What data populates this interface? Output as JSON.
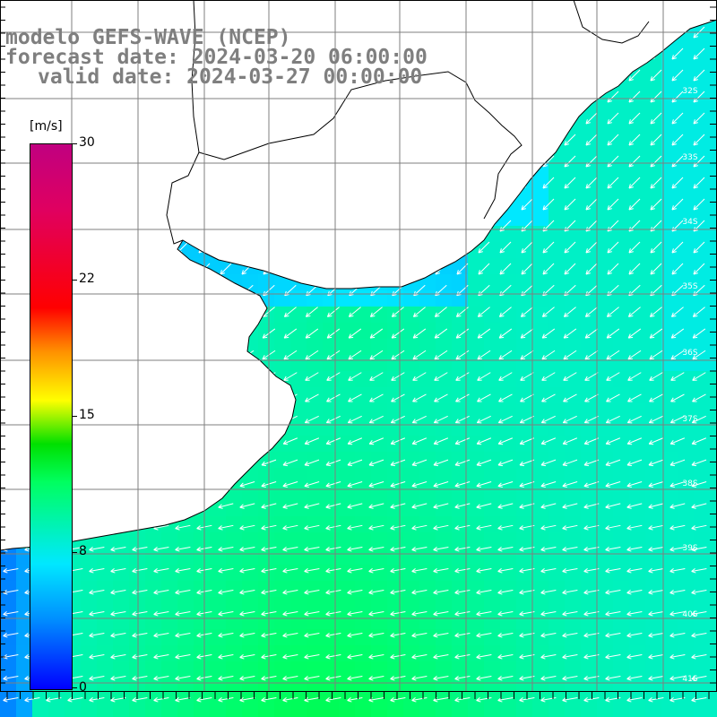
{
  "title": {
    "line1": "modelo GEFS-WAVE (NCEP)",
    "line2": "forecast date: 2024-03-20 06:00:00",
    "line3": "valid date: 2024-03-27 00:00:00"
  },
  "colorbar": {
    "unit": "[m/s]",
    "min": 0,
    "max": 30,
    "ticks": [
      "30",
      "22",
      "15",
      "8",
      "0"
    ]
  },
  "latitude_labels": [
    "32S",
    "33S",
    "34S",
    "35S",
    "36S",
    "37S",
    "38S",
    "39S",
    "40S",
    "41S"
  ],
  "colors": {
    "land": "#ffffff",
    "coast": "#000000",
    "grid": "#7f7f7f",
    "arrow": "#ffffff",
    "title": "#7f7f7f"
  }
}
